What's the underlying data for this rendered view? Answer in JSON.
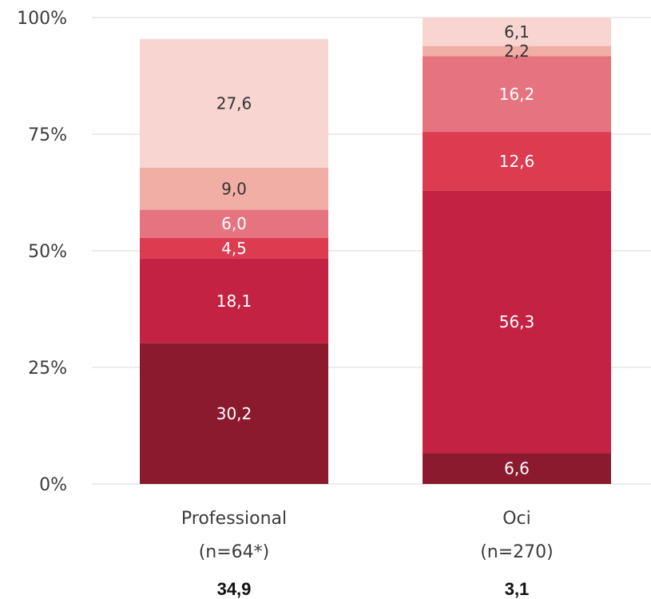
{
  "chart_data": {
    "type": "bar",
    "stacked": true,
    "normalized": true,
    "categories": [
      "Professional",
      "Oci"
    ],
    "category_sublabels": [
      "(n=64*)",
      "(n=270)"
    ],
    "category_summary_values": [
      "34,9",
      "3,1"
    ],
    "y_ticks": [
      "0%",
      "25%",
      "50%",
      "75%",
      "100%"
    ],
    "ylim": [
      0,
      100
    ],
    "grid": true,
    "series": [
      {
        "values": [
          30.2,
          6.6
        ],
        "labels": [
          "30,2",
          "6,6"
        ],
        "color": "#8B1A2F",
        "label_color": "#ffffff"
      },
      {
        "values": [
          18.1,
          56.3
        ],
        "labels": [
          "18,1",
          "56,3"
        ],
        "color": "#C42242",
        "label_color": "#ffffff"
      },
      {
        "values": [
          4.5,
          12.6
        ],
        "labels": [
          "4,5",
          "12,6"
        ],
        "color": "#DC3B50",
        "label_color": "#ffffff"
      },
      {
        "values": [
          6.0,
          16.2
        ],
        "labels": [
          "6,0",
          "16,2"
        ],
        "color": "#E57480",
        "label_color": "#ffffff"
      },
      {
        "values": [
          9.0,
          2.2
        ],
        "labels": [
          "9,0",
          "2,2"
        ],
        "color": "#F1AEA5",
        "label_color": "#333333"
      },
      {
        "values": [
          27.6,
          6.1
        ],
        "labels": [
          "27,6",
          "6,1"
        ],
        "color": "#F8D5D1",
        "label_color": "#333333"
      }
    ]
  }
}
